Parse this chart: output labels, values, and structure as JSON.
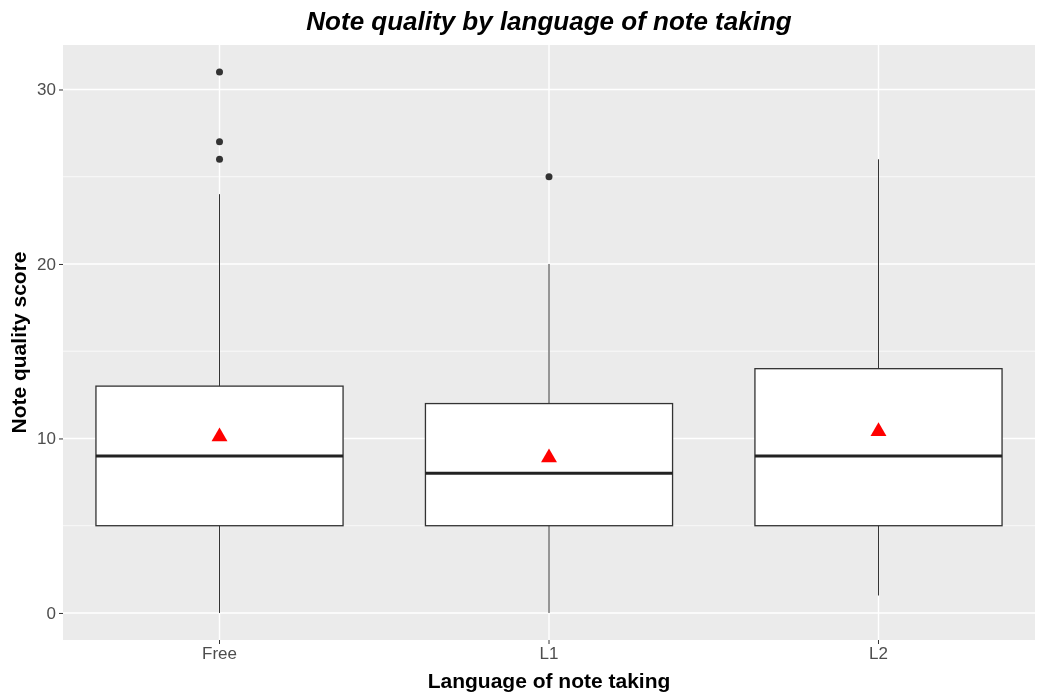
{
  "chart_data": {
    "type": "box",
    "title": "Note quality by language of note taking",
    "xlabel": "Language of note taking",
    "ylabel": "Note quality score",
    "categories": [
      "Free",
      "L1",
      "L2"
    ],
    "boxes": [
      {
        "low": 0,
        "q1": 5,
        "median": 9,
        "q3": 13,
        "high": 24,
        "mean": 10.1,
        "outliers": [
          26,
          27,
          31
        ]
      },
      {
        "low": 0,
        "q1": 5,
        "median": 8,
        "q3": 12,
        "high": 20,
        "mean": 8.9,
        "outliers": [
          25
        ]
      },
      {
        "low": 1,
        "q1": 5,
        "median": 9,
        "q3": 14,
        "high": 26,
        "mean": 10.4
      }
    ],
    "ylim": [
      -1.55,
      32.55
    ],
    "yticks": [
      0,
      {
        "value": 5,
        "label": null
      },
      10,
      {
        "value": 15,
        "label": null
      },
      20,
      {
        "value": 25,
        "label": null
      },
      30
    ],
    "grid": true
  }
}
